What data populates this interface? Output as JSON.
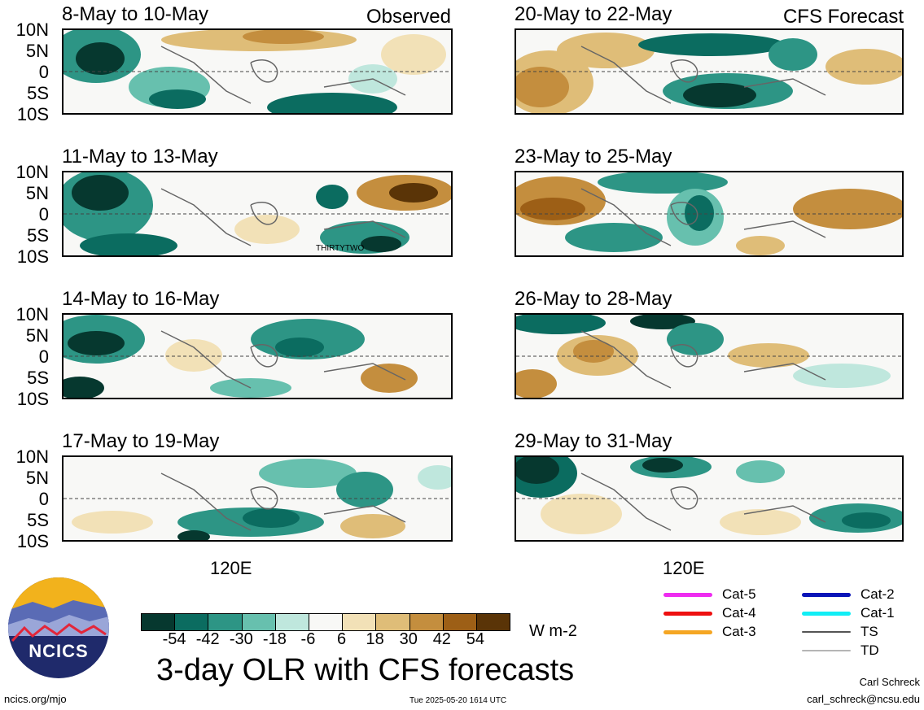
{
  "header": {
    "observed_label": "Observed",
    "forecast_label": "CFS Forecast"
  },
  "lat_labels": [
    "10N",
    "5N",
    "0",
    "5S",
    "10S"
  ],
  "observed_panels": [
    {
      "title": "8-May to 10-May"
    },
    {
      "title": "11-May to 13-May",
      "storm_label": "THIRTYTWO"
    },
    {
      "title": "14-May to 16-May"
    },
    {
      "title": "17-May to 19-May"
    }
  ],
  "forecast_panels": [
    {
      "title": "20-May to 22-May"
    },
    {
      "title": "23-May to 25-May"
    },
    {
      "title": "26-May to 28-May"
    },
    {
      "title": "29-May to 31-May"
    }
  ],
  "lon_label": "120E",
  "colorbar": {
    "labels": [
      "-54",
      "-42",
      "-30",
      "-18",
      "-6",
      "6",
      "18",
      "30",
      "42",
      "54"
    ],
    "colors": [
      "#06382f",
      "#0b6c60",
      "#2d9585",
      "#67c0ae",
      "#bfe7dd",
      "#f8f8f6",
      "#f2e1b7",
      "#dfbd78",
      "#c48e3e",
      "#9d5f16",
      "#5a3407"
    ],
    "units": "W m-2"
  },
  "legend": [
    {
      "label": "Cat-5",
      "color": "#ee2cf0"
    },
    {
      "label": "Cat-4",
      "color": "#ee1010"
    },
    {
      "label": "Cat-3",
      "color": "#f5a623"
    },
    {
      "label": "Cat-2",
      "color": "#0a15b8"
    },
    {
      "label": "Cat-1",
      "color": "#11eef5"
    },
    {
      "label": "TS",
      "color": "#555555"
    },
    {
      "label": "TD",
      "color": "#b5b5b5"
    }
  ],
  "logo": {
    "text": "NCICS"
  },
  "title": "3-day OLR with CFS forecasts",
  "footer": {
    "website": "ncics.org/mjo",
    "timestamp": "Tue 2025-05-20 1614 UTC",
    "author": "Carl Schreck",
    "email": "carl_schreck@ncsu.edu"
  }
}
